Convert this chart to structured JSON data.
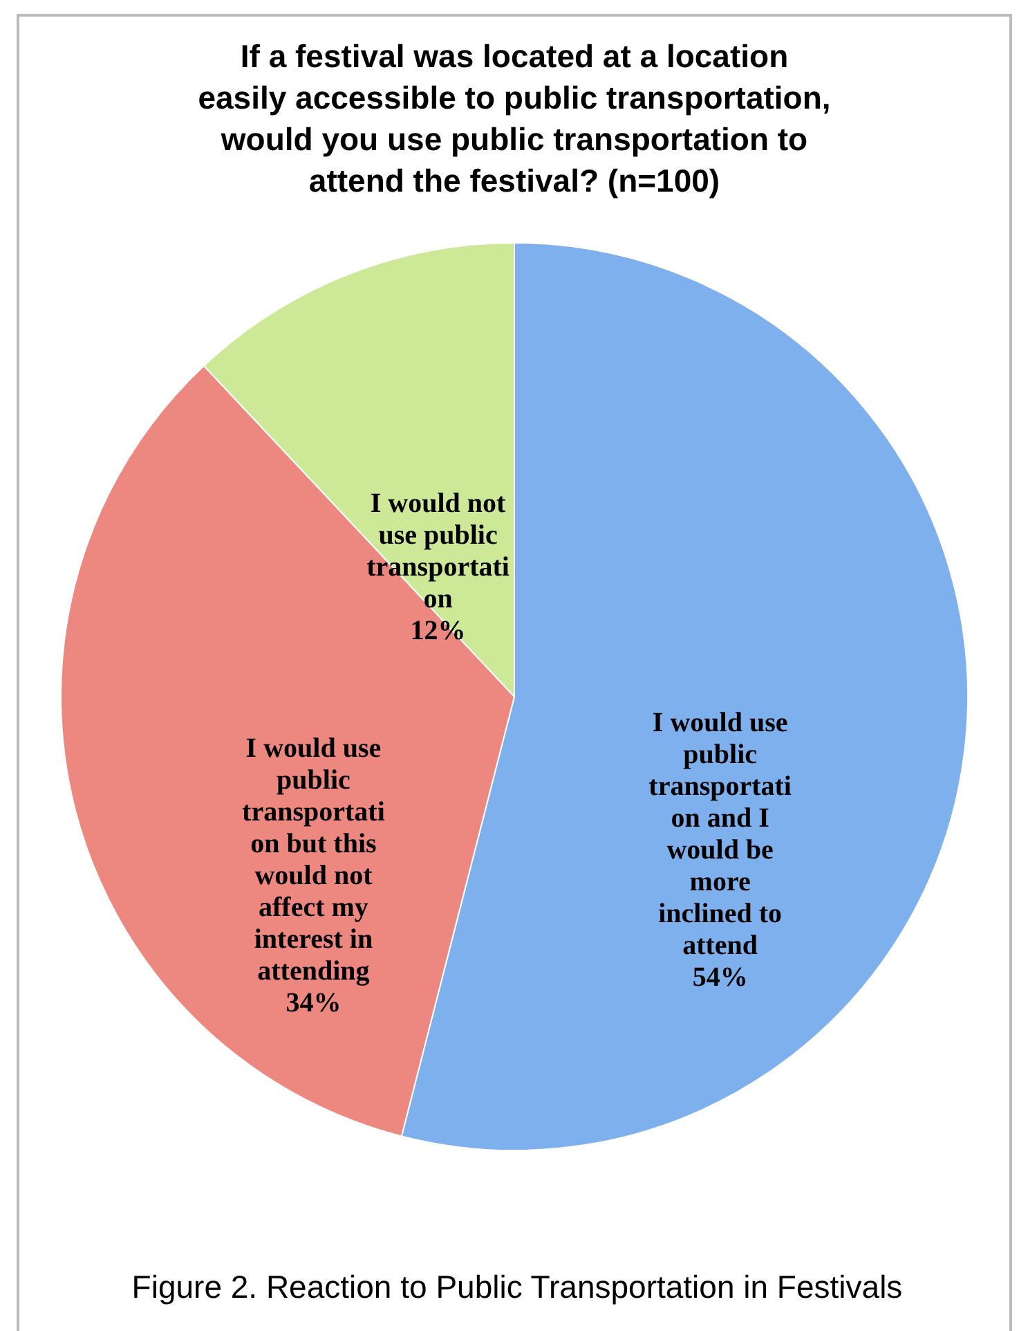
{
  "chart_data": {
    "type": "pie",
    "title": "If a festival was located at a location easily accessible to public transportation, would you use public transportation to attend the festival? (n=100)",
    "categories": [
      "I would use public transportation and I would be more inclined to attend",
      "I would use public transportation but this would not affect my interest in attending",
      "I would not use public transportation"
    ],
    "values": [
      54,
      34,
      12
    ],
    "value_labels": [
      "54%",
      "34%",
      "12%"
    ],
    "colors": [
      "#7db0ec",
      "#ec8880",
      "#cde896"
    ],
    "annotations": [
      "Figure 2. Reaction to Public Transportation in Festivals"
    ]
  }
}
